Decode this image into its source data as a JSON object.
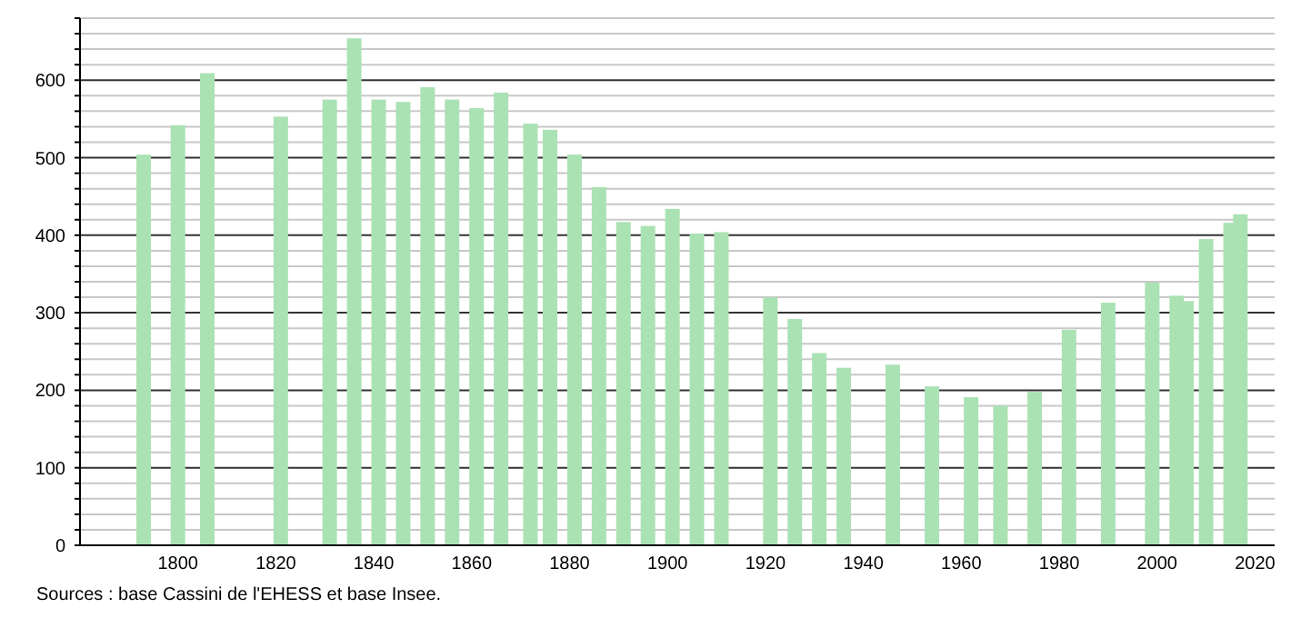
{
  "chart_data": {
    "type": "bar",
    "x": [
      1793,
      1800,
      1806,
      1821,
      1831,
      1836,
      1841,
      1846,
      1851,
      1856,
      1861,
      1866,
      1872,
      1876,
      1881,
      1886,
      1891,
      1896,
      1901,
      1906,
      1911,
      1921,
      1926,
      1931,
      1936,
      1946,
      1954,
      1962,
      1968,
      1975,
      1982,
      1990,
      1999,
      2004,
      2006,
      2010,
      2015,
      2017
    ],
    "values": [
      504,
      542,
      609,
      553,
      575,
      654,
      575,
      572,
      591,
      575,
      564,
      584,
      544,
      536,
      504,
      462,
      417,
      412,
      434,
      402,
      404,
      320,
      292,
      248,
      229,
      233,
      205,
      191,
      180,
      198,
      278,
      313,
      339,
      322,
      315,
      395,
      416,
      427
    ],
    "color": "#abe2b4",
    "xlim": [
      1780,
      2024
    ],
    "xticks": [
      1800,
      1820,
      1840,
      1860,
      1880,
      1900,
      1920,
      1940,
      1960,
      1980,
      2000,
      2020
    ],
    "ylim": [
      0,
      680
    ],
    "yticks": [
      0,
      {
        "value": 20,
        "label": null
      },
      {
        "value": 40,
        "label": null
      },
      {
        "value": 60,
        "label": null
      },
      {
        "value": 80,
        "label": null
      },
      100,
      {
        "value": 120,
        "label": null
      },
      {
        "value": 140,
        "label": null
      },
      {
        "value": 160,
        "label": null
      },
      {
        "value": 180,
        "label": null
      },
      200,
      {
        "value": 220,
        "label": null
      },
      {
        "value": 240,
        "label": null
      },
      {
        "value": 260,
        "label": null
      },
      {
        "value": 280,
        "label": null
      },
      300,
      {
        "value": 320,
        "label": null
      },
      {
        "value": 340,
        "label": null
      },
      {
        "value": 360,
        "label": null
      },
      {
        "value": 380,
        "label": null
      },
      400,
      {
        "value": 420,
        "label": null
      },
      {
        "value": 440,
        "label": null
      },
      {
        "value": 460,
        "label": null
      },
      {
        "value": 480,
        "label": null
      },
      500,
      {
        "value": 520,
        "label": null
      },
      {
        "value": 540,
        "label": null
      },
      {
        "value": 560,
        "label": null
      },
      {
        "value": 580,
        "label": null
      },
      600,
      {
        "value": 620,
        "label": null
      },
      {
        "value": 640,
        "label": null
      },
      {
        "value": 660,
        "label": null
      },
      {
        "value": 680,
        "label": null
      }
    ],
    "grid": true,
    "annotations": [
      "Sources : base Cassini de l'EHESS et base Insee."
    ]
  }
}
